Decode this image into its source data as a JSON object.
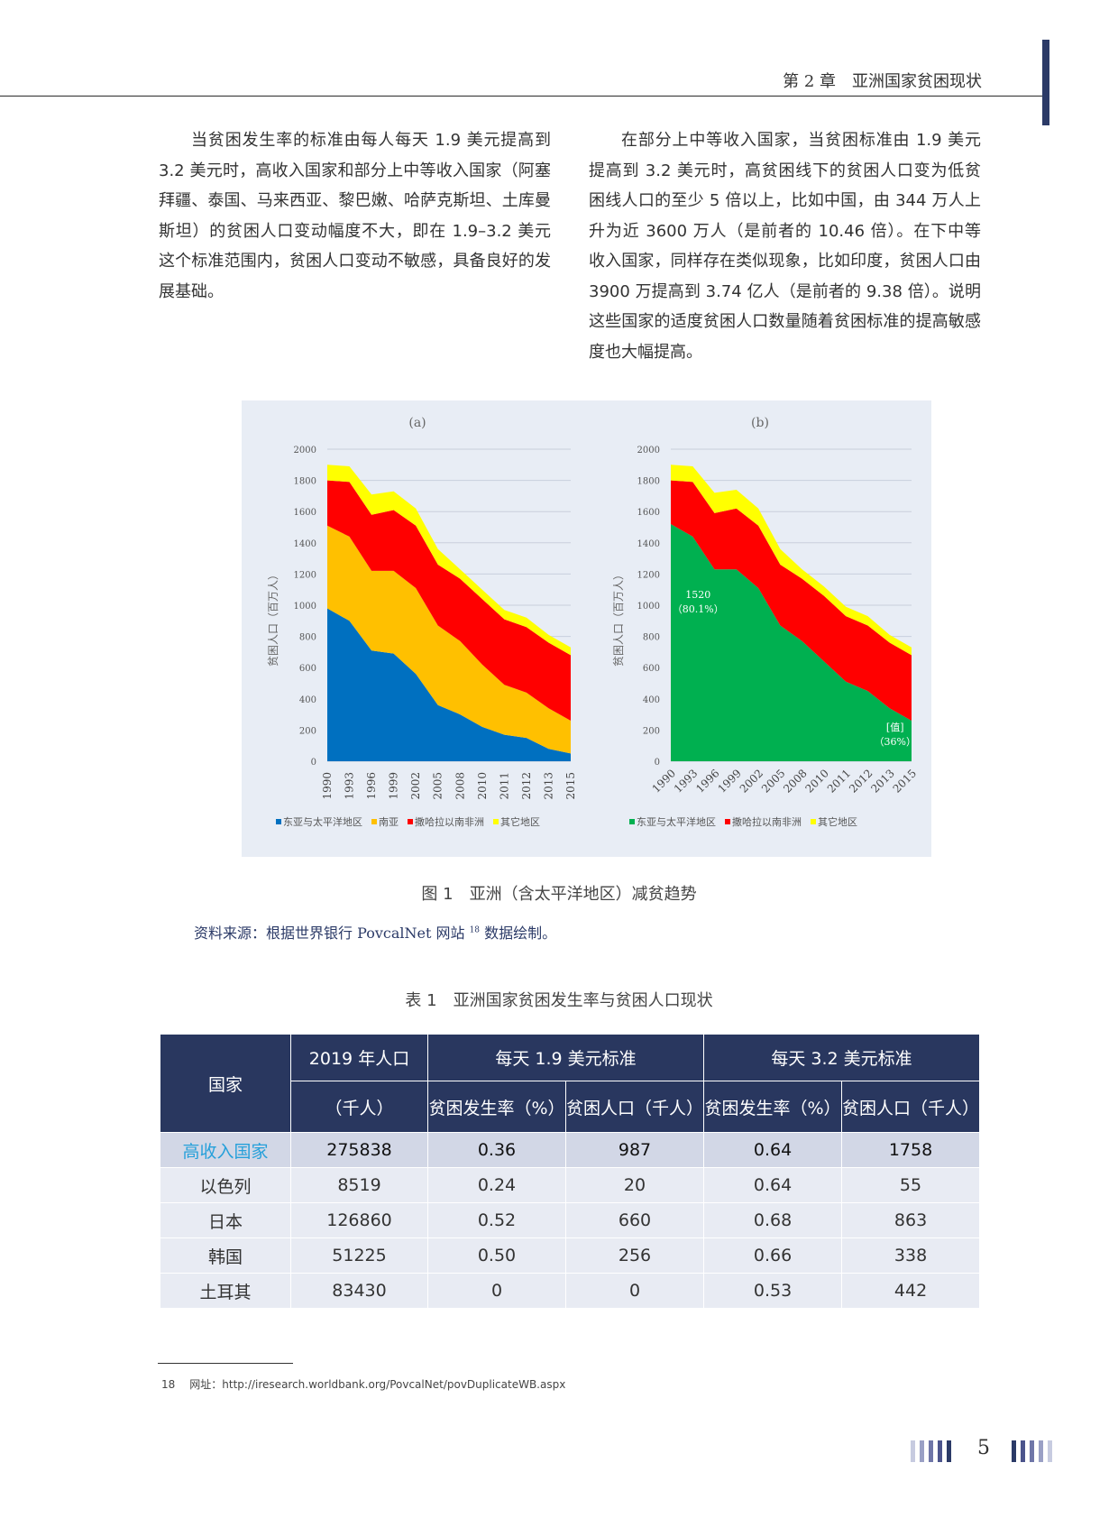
{
  "header": {
    "chapter_title": "第 2 章　亚洲国家贫困现状"
  },
  "paragraphs": {
    "left": "当贫困发生率的标准由每人每天 1.9 美元提高到 3.2 美元时，高收入国家和部分上中等收入国家（阿塞拜疆、泰国、马来西亚、黎巴嫩、哈萨克斯坦、土库曼斯坦）的贫困人口变动幅度不大，即在 1.9–3.2 美元这个标准范围内，贫困人口变动不敏感，具备良好的发展基础。",
    "right": "在部分上中等收入国家，当贫困标准由 1.9 美元提高到 3.2 美元时，高贫困线下的贫困人口变为低贫困线人口的至少 5 倍以上，比如中国，由 344 万人上升为近 3600 万人（是前者的 10.46 倍）。在下中等收入国家，同样存在类似现象，比如印度，贫困人口由 3900 万提高到 3.74 亿人（是前者的 9.38 倍）。说明这些国家的适度贫困人口数量随着贫困标准的提高敏感度也大幅提高。"
  },
  "figure": {
    "caption": "图 1　亚洲（含太平洋地区）减贫趋势",
    "source_prefix": "资料来源：根据世界银行 PovcalNet 网站",
    "source_ref": "18",
    "source_suffix": " 数据绘制。"
  },
  "chart_data": [
    {
      "type": "area",
      "stacked": true,
      "title": "(a)",
      "ylabel": "贫困人口（百万人）",
      "ylim": [
        0,
        2000
      ],
      "yticks": [
        0,
        200,
        400,
        600,
        800,
        1000,
        1200,
        1400,
        1600,
        1800,
        2000
      ],
      "categories": [
        "1990",
        "1993",
        "1996",
        "1999",
        "2002",
        "2005",
        "2008",
        "2010",
        "2011",
        "2012",
        "2013",
        "2015"
      ],
      "legend_position": "bottom",
      "grid": true,
      "series": [
        {
          "name": "东亚与太平洋地区",
          "color": "#0070c0",
          "values": [
            980,
            900,
            710,
            690,
            560,
            360,
            300,
            220,
            170,
            150,
            80,
            50
          ]
        },
        {
          "name": "南亚",
          "color": "#ffc000",
          "values": [
            530,
            540,
            510,
            530,
            550,
            510,
            470,
            400,
            320,
            290,
            260,
            210
          ]
        },
        {
          "name": "撒哈拉以南非洲",
          "color": "#ff0000",
          "values": [
            290,
            350,
            360,
            390,
            400,
            390,
            400,
            420,
            420,
            420,
            420,
            420
          ]
        },
        {
          "name": "其它地区",
          "color": "#ffff00",
          "values": [
            100,
            100,
            130,
            120,
            110,
            100,
            60,
            60,
            60,
            60,
            50,
            50
          ]
        }
      ]
    },
    {
      "type": "area",
      "stacked": true,
      "title": "(b)",
      "ylabel": "贫困人口（百万人）",
      "ylim": [
        0,
        2000
      ],
      "yticks": [
        0,
        200,
        400,
        600,
        800,
        1000,
        1200,
        1400,
        1600,
        1800,
        2000
      ],
      "categories": [
        "1990",
        "1993",
        "1996",
        "1999",
        "2002",
        "2005",
        "2008",
        "2010",
        "2011",
        "2012",
        "2013",
        "2015"
      ],
      "legend_position": "bottom",
      "grid": true,
      "series": [
        {
          "name": "东亚与太平洋地区",
          "color": "#00b050",
          "values": [
            1520,
            1440,
            1230,
            1230,
            1110,
            870,
            770,
            640,
            510,
            450,
            340,
            260
          ]
        },
        {
          "name": "撒哈拉以南非洲",
          "color": "#ff0000",
          "values": [
            280,
            350,
            360,
            390,
            400,
            390,
            400,
            420,
            420,
            420,
            420,
            420
          ]
        },
        {
          "name": "其它地区",
          "color": "#ffff00",
          "values": [
            100,
            100,
            130,
            120,
            110,
            100,
            60,
            60,
            60,
            60,
            50,
            50
          ]
        }
      ],
      "annotations": [
        {
          "text": "1520",
          "text2": "（80.1%）",
          "category": "1993",
          "y": 1000
        },
        {
          "text": "[值]",
          "text2": "（36%）",
          "category": "2013",
          "y": 150
        }
      ]
    }
  ],
  "table": {
    "caption": "表 1　亚洲国家贫困发生率与贫困人口现状",
    "headers": {
      "country": "国家",
      "population_line1": "2019 年人口",
      "population_line2": "（千人）",
      "std19": "每天 1.9 美元标准",
      "std32": "每天 3.2 美元标准",
      "rate": "贫困发生率（%）",
      "people": "贫困人口（千人）"
    },
    "rows": [
      [
        "高收入国家",
        "275838",
        "0.36",
        "987",
        "0.64",
        "1758"
      ],
      [
        "以色列",
        "8519",
        "0.24",
        "20",
        "0.64",
        "55"
      ],
      [
        "日本",
        "126860",
        "0.52",
        "660",
        "0.68",
        "863"
      ],
      [
        "韩国",
        "51225",
        "0.50",
        "256",
        "0.66",
        "338"
      ],
      [
        "土耳其",
        "83430",
        "0",
        "0",
        "0.53",
        "442"
      ]
    ]
  },
  "footnote": {
    "number": "18",
    "text": "网址：http://iresearch.worldbank.org/PovcalNet/povDuplicateWB.aspx"
  },
  "page_number": "5"
}
